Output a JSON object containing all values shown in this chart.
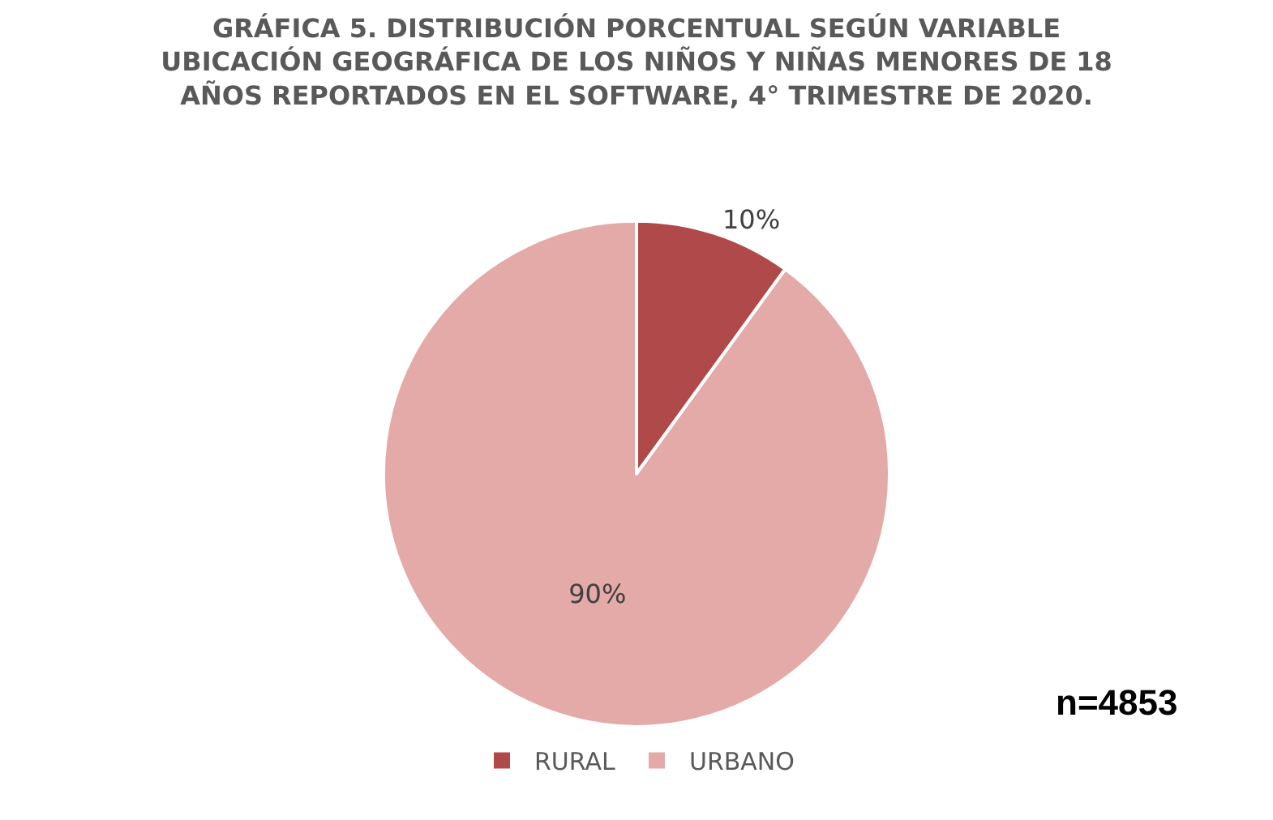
{
  "chart_data": {
    "type": "pie",
    "title": "GRÁFICA 5. DISTRIBUCIÓN PORCENTUAL SEGÚN VARIABLE UBICACIÓN GEOGRÁFICA DE LOS NIÑOS Y NIÑAS MENORES DE 18 AÑOS REPORTADOS EN EL SOFTWARE, 4° TRIMESTRE DE 2020.",
    "categories": [
      "RURAL",
      "URBANO"
    ],
    "values": [
      10,
      90
    ],
    "colors": [
      "#b04a4a",
      "#e3aaa8"
    ],
    "value_labels": [
      "10%",
      "90%"
    ],
    "annotations": [
      "n=4853"
    ],
    "legend": "bottom"
  }
}
